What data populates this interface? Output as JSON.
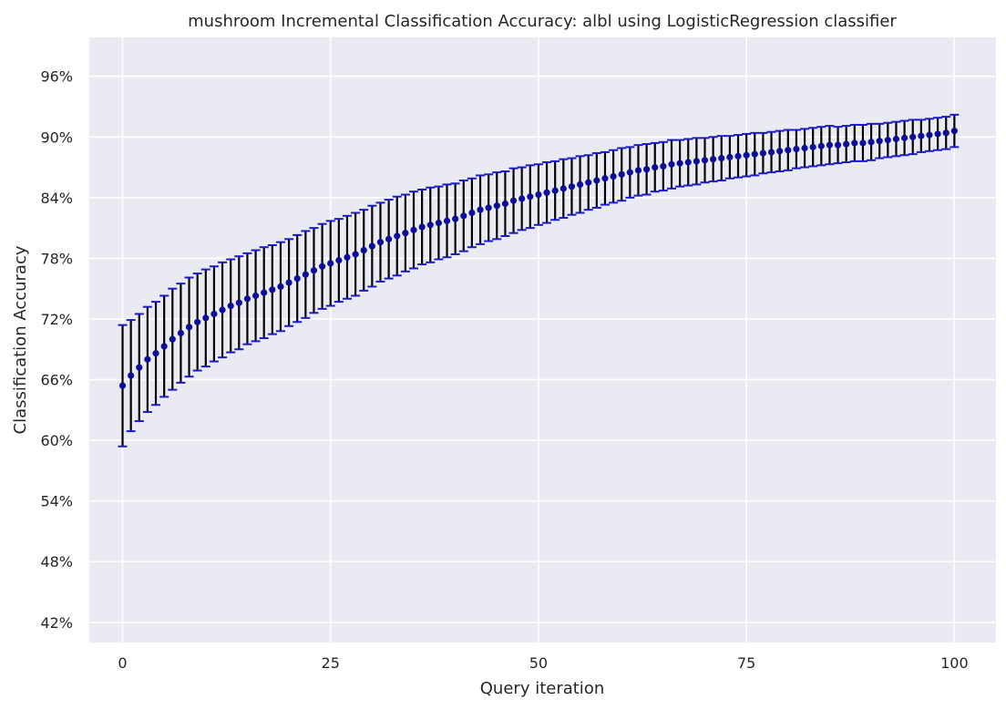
{
  "chart_data": {
    "type": "errorbar",
    "title": "mushroom Incremental Classification Accuracy: albl using LogisticRegression classifier",
    "xlabel": "Query iteration",
    "ylabel": "Classification Accuracy",
    "xlim": [
      -4,
      105
    ],
    "ylim": [
      0.4,
      0.9985
    ],
    "x_ticks": [
      0,
      25,
      50,
      75,
      100
    ],
    "x_tick_labels": [
      "0",
      "25",
      "50",
      "75",
      "100"
    ],
    "y_ticks": [
      0.42,
      0.48,
      0.54,
      0.6,
      0.66,
      0.72,
      0.78,
      0.84,
      0.9,
      0.96
    ],
    "y_tick_labels": [
      "42%",
      "48%",
      "54%",
      "60%",
      "66%",
      "72%",
      "78%",
      "84%",
      "90%",
      "96%"
    ],
    "grid": true,
    "x_start": 0,
    "mean": [
      0.654,
      0.664,
      0.672,
      0.68,
      0.686,
      0.693,
      0.7,
      0.706,
      0.712,
      0.717,
      0.721,
      0.725,
      0.729,
      0.733,
      0.736,
      0.74,
      0.743,
      0.746,
      0.749,
      0.752,
      0.756,
      0.76,
      0.764,
      0.768,
      0.772,
      0.775,
      0.778,
      0.781,
      0.784,
      0.788,
      0.792,
      0.796,
      0.799,
      0.802,
      0.805,
      0.808,
      0.811,
      0.813,
      0.815,
      0.817,
      0.819,
      0.822,
      0.825,
      0.828,
      0.83,
      0.832,
      0.834,
      0.837,
      0.839,
      0.841,
      0.843,
      0.845,
      0.847,
      0.849,
      0.851,
      0.853,
      0.855,
      0.857,
      0.859,
      0.861,
      0.863,
      0.865,
      0.867,
      0.868,
      0.87,
      0.871,
      0.873,
      0.874,
      0.875,
      0.876,
      0.877,
      0.878,
      0.879,
      0.88,
      0.881,
      0.882,
      0.883,
      0.884,
      0.885,
      0.886,
      0.887,
      0.888,
      0.889,
      0.89,
      0.891,
      0.892,
      0.892,
      0.893,
      0.894,
      0.894,
      0.895,
      0.896,
      0.897,
      0.898,
      0.899,
      0.9,
      0.901,
      0.902,
      0.903,
      0.904,
      0.906
    ],
    "error": [
      0.06,
      0.055,
      0.053,
      0.052,
      0.051,
      0.05,
      0.05,
      0.049,
      0.049,
      0.048,
      0.048,
      0.047,
      0.047,
      0.046,
      0.046,
      0.045,
      0.045,
      0.045,
      0.044,
      0.044,
      0.043,
      0.043,
      0.043,
      0.042,
      0.042,
      0.042,
      0.041,
      0.041,
      0.041,
      0.04,
      0.04,
      0.039,
      0.039,
      0.039,
      0.038,
      0.038,
      0.037,
      0.037,
      0.036,
      0.036,
      0.035,
      0.035,
      0.034,
      0.034,
      0.033,
      0.033,
      0.032,
      0.032,
      0.031,
      0.031,
      0.03,
      0.03,
      0.029,
      0.029,
      0.028,
      0.028,
      0.027,
      0.027,
      0.026,
      0.026,
      0.026,
      0.025,
      0.025,
      0.025,
      0.024,
      0.024,
      0.024,
      0.023,
      0.023,
      0.023,
      0.022,
      0.022,
      0.022,
      0.021,
      0.021,
      0.021,
      0.021,
      0.02,
      0.02,
      0.02,
      0.02,
      0.019,
      0.019,
      0.019,
      0.019,
      0.019,
      0.018,
      0.018,
      0.018,
      0.018,
      0.018,
      0.017,
      0.017,
      0.017,
      0.017,
      0.017,
      0.016,
      0.016,
      0.016,
      0.016,
      0.016
    ],
    "colors": {
      "background": "#eaeaf2",
      "grid": "#ffffff",
      "marker": "#0d0d9c",
      "errorbar": "#000000",
      "cap": "#1a1acc",
      "text": "#262626"
    }
  }
}
